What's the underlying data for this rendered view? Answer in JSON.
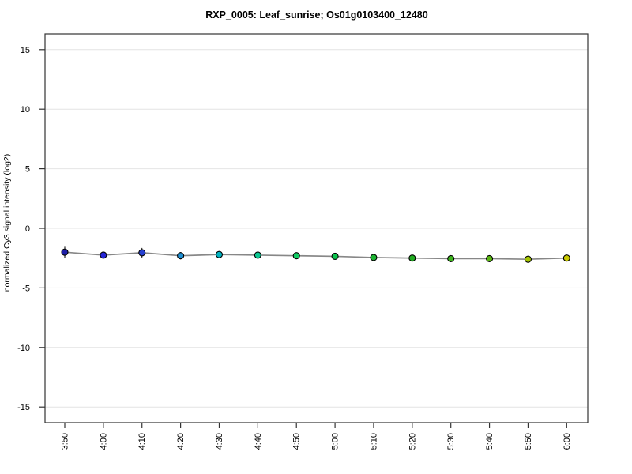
{
  "chart_data": {
    "type": "line",
    "title": "RXP_0005: Leaf_sunrise; Os01g0103400_12480",
    "ylabel": "normalized Cy3 signal intensity (log2)",
    "xlabel": "",
    "categories": [
      "3:50",
      "4:00",
      "4:10",
      "4:20",
      "4:30",
      "4:40",
      "4:50",
      "5:00",
      "5:10",
      "5:20",
      "5:30",
      "5:40",
      "5:50",
      "6:00"
    ],
    "values": [
      -2.0,
      -2.25,
      -2.05,
      -2.3,
      -2.2,
      -2.25,
      -2.3,
      -2.35,
      -2.45,
      -2.5,
      -2.55,
      -2.55,
      -2.6,
      -2.5
    ],
    "errors": [
      0.45,
      0.2,
      0.4,
      0.3,
      0.2,
      0.2,
      0.2,
      0.2,
      0.2,
      0.2,
      0.2,
      0.2,
      0.2,
      0.2
    ],
    "point_colors": [
      "#1f1fa8",
      "#2525d6",
      "#2741d2",
      "#1e8fd2",
      "#00b2c0",
      "#0cc792",
      "#0fcb62",
      "#0bc34c",
      "#1db432",
      "#21ac21",
      "#3cb31c",
      "#59b612",
      "#a6c703",
      "#c9c900"
    ],
    "line_color": "#878787",
    "marker_outline_color": "#000000",
    "grid_color": "#e4e4e4",
    "axis_color": "#333333",
    "yticks": [
      -15,
      -10,
      -5,
      0,
      5,
      10,
      15
    ],
    "ylim": [
      -16.3,
      16.3
    ],
    "grid": "horizontal gridlines at y ticks",
    "legend_position": "none"
  }
}
